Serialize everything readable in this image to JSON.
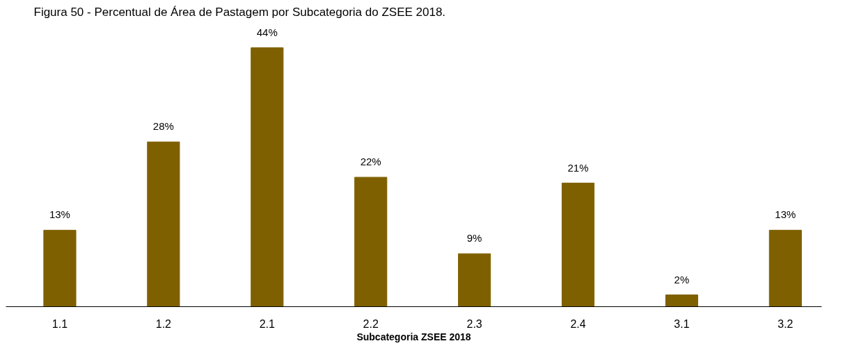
{
  "chart_data": {
    "type": "bar",
    "title": "Figura 50 - Percentual de Área de Pastagem por Subcategoria do ZSEE 2018.",
    "xlabel": "Subcategoria ZSEE 2018",
    "categories": [
      "1.1",
      "1.2",
      "2.1",
      "2.2",
      "2.3",
      "2.4",
      "3.1",
      "3.2"
    ],
    "values": [
      13,
      28,
      44,
      22,
      9,
      21,
      2,
      13
    ],
    "value_labels": [
      "13%",
      "28%",
      "44%",
      "22%",
      "9%",
      "21%",
      "2%",
      "13%"
    ],
    "color": "#7f6000",
    "grid": false,
    "tick_labels": "x"
  }
}
